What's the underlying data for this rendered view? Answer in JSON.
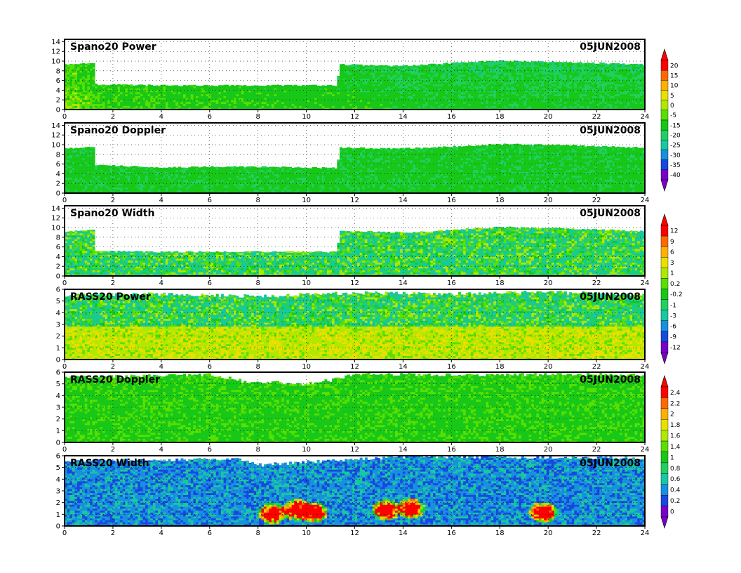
{
  "chart_data": [
    {
      "type": "heatmap",
      "title": "Spano20 Power",
      "date": "05JUN2008",
      "x_ticks": [
        "0",
        "2",
        "4",
        "6",
        "8",
        "10",
        "12",
        "14",
        "16",
        "18",
        "20",
        "22",
        "24"
      ],
      "xlim": [
        0,
        24
      ],
      "y_ticks": [
        "0",
        "2",
        "4",
        "6",
        "8",
        "10",
        "12",
        "14"
      ],
      "ylim": [
        0,
        14.5
      ],
      "grid": true,
      "colorbar_group": 0,
      "top_height_profile": [
        [
          0,
          9.3
        ],
        [
          1.2,
          9.5
        ],
        [
          1.25,
          5.2
        ],
        [
          4,
          5.0
        ],
        [
          7,
          5.0
        ],
        [
          11.3,
          5.0
        ],
        [
          11.35,
          9.3
        ],
        [
          14,
          9.0
        ],
        [
          16,
          9.6
        ],
        [
          18,
          10.1
        ],
        [
          20,
          9.9
        ],
        [
          22,
          9.6
        ],
        [
          24,
          9.3
        ]
      ],
      "dominant_value_profile": [
        [
          0,
          -5
        ],
        [
          0.5,
          -5
        ],
        [
          1.5,
          -10
        ],
        [
          3,
          -10
        ],
        [
          9,
          -12
        ],
        [
          12,
          -12
        ],
        [
          14,
          -15
        ],
        [
          18,
          -15
        ],
        [
          24,
          -15
        ]
      ]
    },
    {
      "type": "heatmap",
      "title": "Spano20 Doppler",
      "date": "05JUN2008",
      "x_ticks": [
        "0",
        "2",
        "4",
        "6",
        "8",
        "10",
        "12",
        "14",
        "16",
        "18",
        "20",
        "22",
        "24"
      ],
      "xlim": [
        0,
        24
      ],
      "y_ticks": [
        "0",
        "2",
        "4",
        "6",
        "8",
        "10",
        "12",
        "14"
      ],
      "ylim": [
        0,
        14.5
      ],
      "grid": true,
      "colorbar_group": 0,
      "top_height_profile": [
        [
          0,
          9.3
        ],
        [
          1.2,
          9.5
        ],
        [
          1.25,
          5.8
        ],
        [
          4,
          5.3
        ],
        [
          7,
          5.5
        ],
        [
          11.3,
          5.2
        ],
        [
          11.35,
          9.4
        ],
        [
          14,
          9.2
        ],
        [
          16,
          9.6
        ],
        [
          18,
          10.1
        ],
        [
          20,
          10.0
        ],
        [
          22,
          9.7
        ],
        [
          24,
          9.4
        ]
      ],
      "dominant_value_profile": [
        [
          0,
          -12
        ],
        [
          24,
          -12
        ]
      ]
    },
    {
      "type": "heatmap",
      "title": "Spano20 Width",
      "date": "05JUN2008",
      "x_ticks": [
        "0",
        "2",
        "4",
        "6",
        "8",
        "10",
        "12",
        "14",
        "16",
        "18",
        "20",
        "22",
        "24"
      ],
      "xlim": [
        0,
        24
      ],
      "y_ticks": [
        "0",
        "2",
        "4",
        "6",
        "8",
        "10",
        "12",
        "14"
      ],
      "ylim": [
        0,
        14.5
      ],
      "grid": true,
      "colorbar_group": 1,
      "top_height_profile": [
        [
          0,
          9.2
        ],
        [
          1.2,
          9.5
        ],
        [
          1.25,
          5.2
        ],
        [
          4,
          5.0
        ],
        [
          7,
          5.0
        ],
        [
          11.3,
          5.0
        ],
        [
          11.35,
          9.3
        ],
        [
          14,
          9.0
        ],
        [
          16,
          9.5
        ],
        [
          18,
          10.1
        ],
        [
          20,
          9.9
        ],
        [
          22,
          9.6
        ],
        [
          24,
          9.2
        ]
      ],
      "dominant_value_profile": [
        [
          0,
          -0.5
        ],
        [
          24,
          -0.5
        ]
      ]
    },
    {
      "type": "heatmap",
      "title": "RASS20 Power",
      "date": "05JUN2008",
      "x_ticks": [
        "0",
        "2",
        "4",
        "6",
        "8",
        "10",
        "12",
        "14",
        "16",
        "18",
        "20",
        "22",
        "24"
      ],
      "xlim": [
        0,
        24
      ],
      "y_ticks": [
        "0",
        "1",
        "2",
        "3",
        "4",
        "5",
        "6"
      ],
      "ylim": [
        0,
        6
      ],
      "grid": true,
      "colorbar_group": 1,
      "top_height_profile": [
        [
          0,
          5.5
        ],
        [
          4,
          5.6
        ],
        [
          8,
          5.4
        ],
        [
          12,
          5.7
        ],
        [
          16,
          5.6
        ],
        [
          20,
          5.8
        ],
        [
          24,
          5.5
        ]
      ],
      "dominant_value_profile": [
        [
          0,
          0.5
        ],
        [
          24,
          0.5
        ]
      ]
    },
    {
      "type": "heatmap",
      "title": "RASS20 Doppler",
      "date": "05JUN2008",
      "x_ticks": [
        "0",
        "2",
        "4",
        "6",
        "8",
        "10",
        "12",
        "14",
        "16",
        "18",
        "20",
        "22",
        "24"
      ],
      "xlim": [
        0,
        24
      ],
      "y_ticks": [
        "0",
        "1",
        "2",
        "3",
        "4",
        "5",
        "6"
      ],
      "ylim": [
        0,
        6
      ],
      "grid": true,
      "colorbar_group": 2,
      "top_height_profile": [
        [
          0,
          5.6
        ],
        [
          4,
          5.7
        ],
        [
          6,
          5.8
        ],
        [
          7.5,
          5.2
        ],
        [
          10,
          5.0
        ],
        [
          11,
          5.3
        ],
        [
          12,
          5.8
        ],
        [
          18,
          5.8
        ],
        [
          24,
          5.8
        ]
      ],
      "dominant_value_profile": [
        [
          0,
          1.3
        ],
        [
          24,
          1.3
        ]
      ]
    },
    {
      "type": "heatmap",
      "title": "RASS20 Width",
      "date": "05JUN2008",
      "x_ticks": [
        "0",
        "2",
        "4",
        "6",
        "8",
        "10",
        "12",
        "14",
        "16",
        "18",
        "20",
        "22",
        "24"
      ],
      "xlim": [
        0,
        24
      ],
      "y_ticks": [
        "0",
        "1",
        "2",
        "3",
        "4",
        "5",
        "6"
      ],
      "ylim": [
        0,
        6
      ],
      "grid": true,
      "colorbar_group": 2,
      "top_height_profile": [
        [
          0,
          5.6
        ],
        [
          4,
          5.6
        ],
        [
          7,
          5.8
        ],
        [
          8,
          5.2
        ],
        [
          11,
          5.6
        ],
        [
          14,
          5.9
        ],
        [
          18,
          5.9
        ],
        [
          24,
          5.8
        ]
      ],
      "dominant_value_profile": [
        [
          0,
          0.5
        ],
        [
          24,
          0.5
        ]
      ],
      "hotspots": [
        [
          8.6,
          1.0
        ],
        [
          9.6,
          1.3
        ],
        [
          10.3,
          1.1
        ],
        [
          13.3,
          1.3
        ],
        [
          14.3,
          1.4
        ],
        [
          19.8,
          1.1
        ]
      ]
    }
  ],
  "colorbars": [
    {
      "labels": [
        "20",
        "15",
        "10",
        "5",
        "0",
        "-5",
        "-15",
        "-20",
        "-25",
        "-30",
        "-35",
        "-40"
      ],
      "colors": [
        "#ff0000",
        "#ff6a00",
        "#ffb000",
        "#e8e000",
        "#b0e800",
        "#5ae000",
        "#18c818",
        "#20d060",
        "#18c8a0",
        "#1890e0",
        "#1848e0",
        "#7800c8"
      ]
    },
    {
      "labels": [
        "12",
        "9",
        "6",
        "3",
        "1",
        "0.2",
        "-0.2",
        "-1",
        "-3",
        "-6",
        "-9",
        "-12"
      ],
      "colors": [
        "#ff0000",
        "#ff6a00",
        "#ffb000",
        "#e8e000",
        "#b0e800",
        "#5ae000",
        "#18c818",
        "#20d060",
        "#18c8a0",
        "#1890e0",
        "#1848e0",
        "#7800c8"
      ]
    },
    {
      "labels": [
        "2.4",
        "2.2",
        "2",
        "1.8",
        "1.6",
        "1.4",
        "1",
        "0.8",
        "0.6",
        "0.4",
        "0.2",
        "0"
      ],
      "colors": [
        "#ff0000",
        "#ff6a00",
        "#ffb000",
        "#e8e000",
        "#b0e800",
        "#5ae000",
        "#18c818",
        "#20d060",
        "#18c8a0",
        "#1890e0",
        "#1848e0",
        "#7800c8"
      ]
    }
  ]
}
